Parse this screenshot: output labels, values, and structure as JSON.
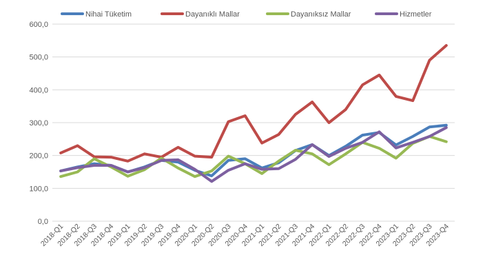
{
  "chart_data": {
    "type": "line",
    "title": "",
    "xlabel": "",
    "ylabel": "",
    "ylim": [
      0,
      600
    ],
    "yticks": [
      "0,0",
      "100,0",
      "200,0",
      "300,0",
      "400,0",
      "500,0",
      "600,0"
    ],
    "grid": true,
    "legend_position": "top",
    "categories": [
      "2018-Q1",
      "2018-Q2",
      "2018-Q3",
      "2018-Q4",
      "2019-Q1",
      "2019-Q2",
      "2019-Q3",
      "2019-Q4",
      "2020-Q1",
      "2020-Q2",
      "2020-Q3",
      "2020-Q4",
      "2021-Q1",
      "2021-Q2",
      "2021-Q3",
      "2021-Q4",
      "2022-Q1",
      "2022-Q2",
      "2022-Q3",
      "2022-Q4",
      "2023-Q1",
      "2023-Q2",
      "2023-Q3",
      "2023-Q4"
    ],
    "series": [
      {
        "name": "Nihai Tüketim",
        "color": "#4a7ebb",
        "values": [
          153,
          165,
          175,
          170,
          150,
          165,
          185,
          180,
          155,
          138,
          185,
          190,
          162,
          178,
          215,
          233,
          200,
          228,
          262,
          270,
          232,
          258,
          287,
          292
        ]
      },
      {
        "name": "Dayanıklı Mallar",
        "color": "#be4b48",
        "values": [
          208,
          230,
          196,
          195,
          183,
          205,
          195,
          225,
          198,
          195,
          303,
          321,
          238,
          264,
          325,
          363,
          300,
          340,
          415,
          445,
          380,
          367,
          490,
          535
        ]
      },
      {
        "name": "Dayanıksız Mallar",
        "color": "#98b954",
        "values": [
          136,
          150,
          190,
          165,
          137,
          157,
          192,
          162,
          136,
          153,
          198,
          175,
          145,
          183,
          216,
          205,
          172,
          205,
          240,
          222,
          192,
          237,
          258,
          242
        ]
      },
      {
        "name": "Hizmetler",
        "color": "#7d60a0",
        "values": [
          153,
          163,
          170,
          170,
          150,
          163,
          185,
          187,
          158,
          121,
          155,
          175,
          158,
          160,
          188,
          233,
          197,
          222,
          240,
          272,
          223,
          240,
          258,
          285
        ]
      }
    ]
  }
}
